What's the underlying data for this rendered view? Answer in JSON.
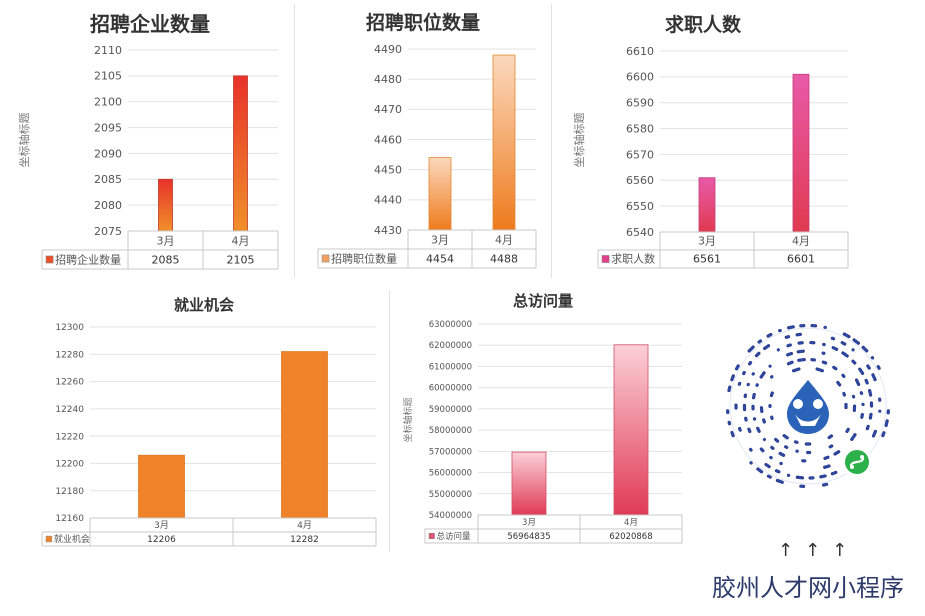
{
  "chart_data": [
    {
      "id": "c1",
      "type": "bar",
      "title": "招聘企业数量",
      "ylabel": "坐标轴标题",
      "categories": [
        "3月",
        "4月"
      ],
      "series": [
        {
          "name": "招聘企业数量",
          "values": [
            2085,
            2105
          ]
        }
      ],
      "ylim": [
        2075,
        2110
      ],
      "yticks": [
        2075,
        2080,
        2085,
        2090,
        2095,
        2100,
        2105,
        2110
      ],
      "ytick_labels": [
        "2075",
        "2080",
        "2085",
        "2090",
        "2095",
        "2100",
        "2105",
        "2110"
      ],
      "table_values": [
        "2085",
        "2105"
      ],
      "legend_color": "#e8502a",
      "grid": true
    },
    {
      "id": "c2",
      "type": "bar",
      "title": "招聘职位数量",
      "categories": [
        "3月",
        "4月"
      ],
      "series": [
        {
          "name": "招聘职位数量",
          "values": [
            4454,
            4488
          ]
        }
      ],
      "ylim": [
        4430,
        4490
      ],
      "yticks": [
        4430,
        4440,
        4450,
        4460,
        4470,
        4480,
        4490
      ],
      "ytick_labels": [
        "4430",
        "4440",
        "4450",
        "4460",
        "4470",
        "4480",
        "4490"
      ],
      "table_values": [
        "4454",
        "4488"
      ],
      "legend_color": "#f0a060",
      "grid": true
    },
    {
      "id": "c3",
      "type": "bar",
      "title": "求职人数",
      "ylabel": "坐标轴标题",
      "categories": [
        "3月",
        "4月"
      ],
      "series": [
        {
          "name": "求职人数",
          "values": [
            6561,
            6601
          ]
        }
      ],
      "ylim": [
        6540,
        6610
      ],
      "yticks": [
        6540,
        6550,
        6560,
        6570,
        6580,
        6590,
        6600,
        6610
      ],
      "ytick_labels": [
        "6540",
        "6550",
        "6560",
        "6570",
        "6580",
        "6590",
        "6600",
        "6610"
      ],
      "table_values": [
        "6561",
        "6601"
      ],
      "legend_color": "#e0408a",
      "grid": true
    },
    {
      "id": "c4",
      "type": "bar",
      "title": "就业机会",
      "categories": [
        "3月",
        "4月"
      ],
      "series": [
        {
          "name": "就业机会",
          "values": [
            12206,
            12282
          ]
        }
      ],
      "ylim": [
        12160,
        12300
      ],
      "yticks": [
        12160,
        12180,
        12200,
        12220,
        12240,
        12260,
        12280,
        12300
      ],
      "ytick_labels": [
        "12160",
        "12180",
        "12200",
        "12220",
        "12240",
        "12260",
        "12280",
        "12300"
      ],
      "table_values": [
        "12206",
        "12282"
      ],
      "legend_color": "#f0832a",
      "grid": true
    },
    {
      "id": "c5",
      "type": "bar",
      "title": "总访问量",
      "ylabel": "坐标轴标题",
      "categories": [
        "3月",
        "4月"
      ],
      "series": [
        {
          "name": "总访问量",
          "values": [
            56964835,
            62020868
          ]
        }
      ],
      "ylim": [
        54000000,
        63000000
      ],
      "yticks": [
        54000000,
        55000000,
        56000000,
        57000000,
        58000000,
        59000000,
        60000000,
        61000000,
        62000000,
        63000000
      ],
      "ytick_labels": [
        "54000000",
        "55000000",
        "56000000",
        "57000000",
        "58000000",
        "59000000",
        "60000000",
        "61000000",
        "62000000",
        "63000000"
      ],
      "table_values": [
        "56964835",
        "62020868"
      ],
      "legend_color": "#e05570",
      "grid": true
    }
  ],
  "qr": {
    "arrows": "↑↑↑",
    "program_name": "胶州人才网小程序"
  }
}
